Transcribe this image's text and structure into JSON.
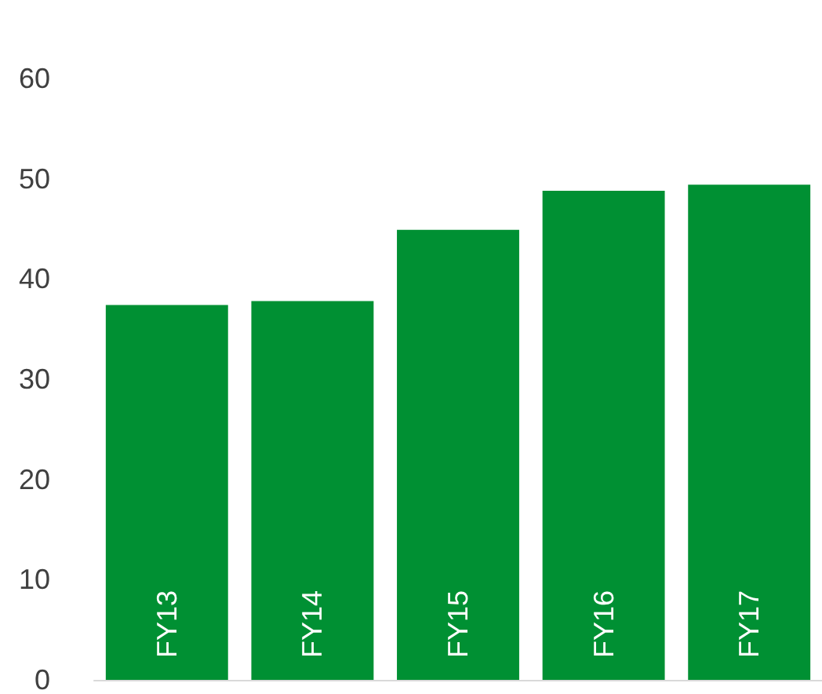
{
  "chart_data": {
    "type": "bar",
    "categories": [
      "FY13",
      "FY14",
      "FY15",
      "FY16",
      "FY17"
    ],
    "values": [
      37.4,
      37.8,
      44.9,
      48.8,
      49.4
    ],
    "color": "#009033",
    "ylim": [
      0,
      60
    ],
    "yticks": [
      0,
      10,
      20,
      30,
      40,
      50,
      60
    ],
    "grid": false
  }
}
